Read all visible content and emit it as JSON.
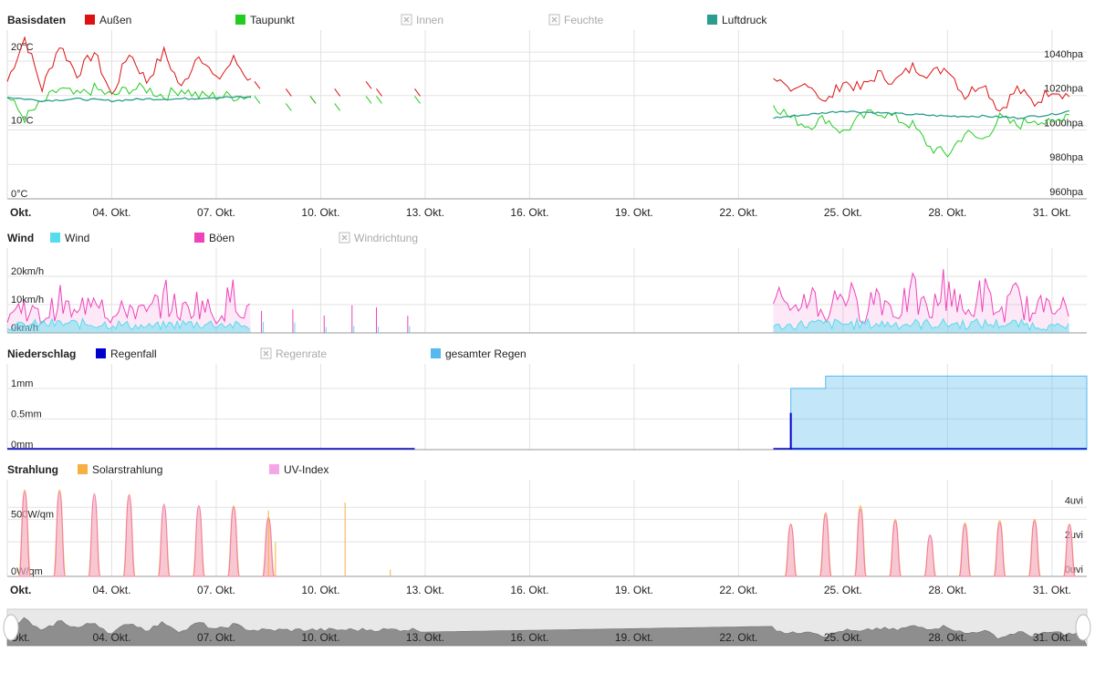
{
  "x_ticks": {
    "first_label": "Okt.",
    "labels": [
      "04. Okt.",
      "07. Okt.",
      "10. Okt.",
      "13. Okt.",
      "16. Okt.",
      "19. Okt.",
      "22. Okt.",
      "25. Okt.",
      "28. Okt.",
      "31. Okt."
    ],
    "range_days": [
      1,
      32
    ]
  },
  "colors": {
    "aussen": "#dd1111",
    "taupunkt": "#22cc22",
    "luftdruck": "#2a9d8f",
    "wind": "#55ddee",
    "boeen": "#ee44bb",
    "regenfall": "#0000cc",
    "gesamter_regen": "#55b8ee",
    "solar": "#f5b041",
    "uv": "#f4a6e6",
    "legend_disabled": "#aaaaaa",
    "grid": "#e2e2e2"
  },
  "panels": [
    {
      "title": "Basisdaten",
      "legend": [
        {
          "label": "Außen",
          "color": "#dd1111",
          "enabled": true
        },
        {
          "label": "Taupunkt",
          "color": "#22cc22",
          "enabled": true
        },
        {
          "label": "Innen",
          "color": "#aaaaaa",
          "enabled": false
        },
        {
          "label": "Feuchte",
          "color": "#aaaaaa",
          "enabled": false
        },
        {
          "label": "Luftdruck",
          "color": "#2a9d8f",
          "enabled": true
        }
      ],
      "y_left": [
        "0°C",
        "10°C",
        "20°C"
      ],
      "y_right": [
        "960hpa",
        "980hpa",
        "1000hpa",
        "1020hpa",
        "1040hpa"
      ]
    },
    {
      "title": "Wind",
      "legend": [
        {
          "label": "Wind",
          "color": "#55ddee",
          "enabled": true
        },
        {
          "label": "Böen",
          "color": "#ee44bb",
          "enabled": true
        },
        {
          "label": "Windrichtung",
          "color": "#aaaaaa",
          "enabled": false
        }
      ],
      "y_left": [
        "0km/h",
        "10km/h",
        "20km/h"
      ]
    },
    {
      "title": "Niederschlag",
      "legend": [
        {
          "label": "Regenfall",
          "color": "#0000cc",
          "enabled": true
        },
        {
          "label": "Regenrate",
          "color": "#aaaaaa",
          "enabled": false
        },
        {
          "label": "gesamter Regen",
          "color": "#55b8ee",
          "enabled": true
        }
      ],
      "y_left": [
        "0mm",
        "0.5mm",
        "1mm"
      ]
    },
    {
      "title": "Strahlung",
      "legend": [
        {
          "label": "Solarstrahlung",
          "color": "#f5b041",
          "enabled": true
        },
        {
          "label": "UV-Index",
          "color": "#f4a6e6",
          "enabled": true
        }
      ],
      "y_left": [
        "0W/qm",
        "500W/qm"
      ],
      "y_right": [
        "0uvi",
        "2uvi",
        "4uvi"
      ]
    }
  ],
  "chart_data": [
    {
      "type": "line",
      "title": "Basisdaten",
      "x_unit": "day of October",
      "y_unit": "°C",
      "ylim": [
        0,
        23
      ],
      "y2_unit": "hPa",
      "y2lim": [
        960,
        1058
      ],
      "gap_days": [
        11,
        22.5
      ],
      "series": [
        {
          "name": "Außen",
          "axis": "y",
          "x": [
            1,
            1.5,
            2,
            2.5,
            3,
            3.5,
            4,
            4.5,
            5,
            5.5,
            6,
            6.5,
            7,
            7.5,
            8,
            23,
            23.5,
            24,
            24.5,
            25,
            25.5,
            26,
            26.5,
            27,
            27.5,
            28,
            28.5,
            29,
            29.5,
            30,
            30.5,
            31,
            31.5
          ],
          "y": [
            16,
            22,
            15,
            21,
            17,
            20,
            14,
            20,
            16,
            20,
            15,
            20,
            16,
            19,
            16,
            17,
            14,
            16,
            13,
            16,
            15,
            17,
            16,
            18,
            17,
            18,
            14,
            16,
            12,
            15,
            13,
            15,
            14
          ]
        },
        {
          "name": "Taupunkt",
          "axis": "y",
          "x": [
            1,
            1.5,
            2,
            2.5,
            3,
            3.5,
            4,
            4.5,
            5,
            5.5,
            6,
            6.5,
            7,
            7.5,
            8,
            23,
            23.5,
            24,
            24.5,
            25,
            25.5,
            26,
            26.5,
            27,
            27.5,
            28,
            28.5,
            29,
            29.5,
            30,
            30.5,
            31,
            31.5
          ],
          "y": [
            14,
            11,
            13,
            15,
            14,
            15,
            14,
            15,
            15,
            14,
            15,
            14,
            14,
            14,
            14,
            13,
            11,
            10,
            11,
            9,
            11,
            12,
            11,
            10,
            7,
            6,
            9,
            8,
            11,
            10,
            11,
            10,
            12
          ]
        },
        {
          "name": "Luftdruck",
          "axis": "y2",
          "x": [
            1,
            2,
            3,
            4,
            5,
            6,
            7,
            8,
            23,
            24,
            25,
            26,
            27,
            28,
            29,
            30,
            31,
            31.5
          ],
          "y": [
            1019,
            1017,
            1018,
            1017,
            1018,
            1018,
            1019,
            1019,
            1007,
            1009,
            1011,
            1010,
            1009,
            1008,
            1008,
            1007,
            1009,
            1011
          ]
        }
      ]
    },
    {
      "type": "area",
      "title": "Wind",
      "x_unit": "day of October",
      "y_unit": "km/h",
      "ylim": [
        0,
        30
      ],
      "series": [
        {
          "name": "Wind",
          "x": [
            1,
            2,
            3,
            4,
            5,
            6,
            7,
            8,
            23,
            24,
            25,
            26,
            27,
            28,
            29,
            30,
            31
          ],
          "y": [
            2,
            3,
            3,
            3,
            2,
            3,
            3,
            2,
            2,
            3,
            3,
            3,
            3,
            3,
            3,
            3,
            2
          ]
        },
        {
          "name": "Böen",
          "x": [
            1,
            1.5,
            2,
            2.5,
            3,
            3.5,
            4,
            4.5,
            5,
            5.5,
            6,
            6.5,
            7,
            7.5,
            8,
            23,
            23.5,
            24,
            24.5,
            25,
            25.5,
            26,
            26.5,
            27,
            27.5,
            28,
            28.5,
            29,
            29.5,
            30,
            30.5,
            31,
            31.5
          ],
          "y": [
            8,
            12,
            6,
            14,
            7,
            22,
            6,
            12,
            8,
            16,
            9,
            14,
            7,
            17,
            8,
            20,
            6,
            19,
            7,
            21,
            8,
            18,
            9,
            17,
            8,
            23,
            7,
            18,
            8,
            16,
            7,
            19,
            6
          ]
        }
      ]
    },
    {
      "type": "bar",
      "title": "Niederschlag",
      "x_unit": "day of October",
      "y_unit": "mm",
      "ylim": [
        0,
        1.4
      ],
      "series": [
        {
          "name": "Regenfall",
          "x": [
            23.5
          ],
          "y": [
            0.6
          ]
        },
        {
          "name": "gesamter Regen",
          "x": [
            23.5,
            24.5,
            32
          ],
          "y": [
            1.0,
            1.2,
            1.2
          ]
        }
      ]
    },
    {
      "type": "area",
      "title": "Strahlung",
      "x_unit": "day of October",
      "y_unit": "W/qm",
      "ylim": [
        0,
        850
      ],
      "y2_unit": "uvi",
      "y2lim": [
        0,
        5.6
      ],
      "series": [
        {
          "name": "Solarstrahlung",
          "x": [
            1.5,
            2.5,
            3.5,
            4.5,
            5.5,
            6.5,
            7.5,
            8.5,
            23.5,
            24.5,
            25.5,
            26.5,
            27.5,
            28.5,
            29.5,
            30.5,
            31.5
          ],
          "y": [
            760,
            760,
            720,
            720,
            620,
            620,
            620,
            520,
            460,
            560,
            620,
            500,
            360,
            470,
            490,
            500,
            460
          ]
        },
        {
          "name": "UV-Index",
          "axis": "y2",
          "x": [
            1.5,
            2.5,
            3.5,
            4.5,
            5.5,
            6.5,
            7.5,
            8.5,
            23.5,
            24.5,
            25.5,
            26.5,
            27.5,
            28.5,
            29.5,
            30.5,
            31.5
          ],
          "y": [
            4.9,
            4.9,
            4.8,
            4.7,
            4.2,
            4.1,
            4.0,
            3.4,
            3.0,
            3.6,
            3.9,
            3.2,
            2.4,
            3.0,
            3.1,
            3.2,
            3.0
          ]
        }
      ]
    }
  ]
}
